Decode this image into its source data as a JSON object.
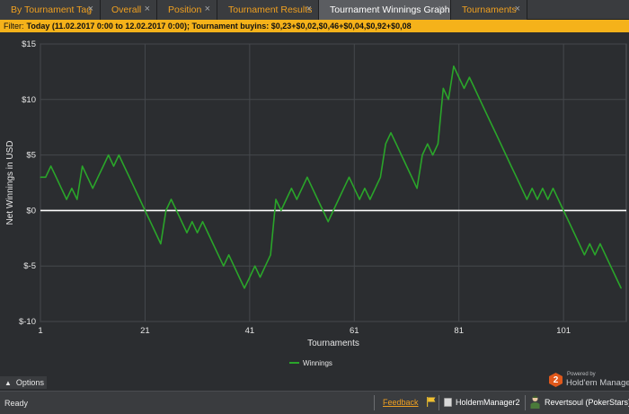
{
  "tabs": [
    {
      "label": "By Tournament Tag",
      "active": false
    },
    {
      "label": "Overall",
      "active": false
    },
    {
      "label": "Position",
      "active": false
    },
    {
      "label": "Tournament Results",
      "active": false
    },
    {
      "label": "Tournament Winnings Graph",
      "active": true
    },
    {
      "label": "Tournaments",
      "active": false
    }
  ],
  "tab_close_glyph": "×",
  "filter": {
    "label": "Filter:",
    "value": "Today (11.02.2017 0:00 to 12.02.2017 0:00); Tournament buyins: $0,23+$0,02,$0,46+$0,04,$0,92+$0,08"
  },
  "options": {
    "label": "Options",
    "icon": "chevron-up-icon"
  },
  "watermark": {
    "powered": "Powered by",
    "brand": "Hold'em Manager",
    "badge": "2"
  },
  "status": {
    "text": "Ready",
    "feedback": "Feedback",
    "database": "HoldemManager2",
    "user": "Revertsoul (PokerStars)"
  },
  "colors": {
    "accent": "#f0a020",
    "filter_bg": "#f5b21a",
    "series": "#2aa52a",
    "zero_line": "#ffffff",
    "background": "#2b2d30"
  },
  "chart_data": {
    "type": "line",
    "title": "",
    "xlabel": "Tournaments",
    "ylabel": "Net Winnings in USD",
    "xlim": [
      1,
      113
    ],
    "ylim": [
      -10,
      15
    ],
    "x_ticks": [
      1,
      21,
      41,
      61,
      81,
      101
    ],
    "y_ticks": [
      {
        "value": 15,
        "label": "$15"
      },
      {
        "value": 10,
        "label": "$10"
      },
      {
        "value": 5,
        "label": "$5"
      },
      {
        "value": 0,
        "label": "$0"
      },
      {
        "value": -5,
        "label": "$-5"
      },
      {
        "value": -10,
        "label": "$-10"
      }
    ],
    "grid": true,
    "legend_position": "bottom-center",
    "series": [
      {
        "name": "Winnings",
        "color": "#2aa52a",
        "points": [
          [
            1,
            3
          ],
          [
            2,
            3
          ],
          [
            3,
            4
          ],
          [
            4,
            3
          ],
          [
            5,
            2
          ],
          [
            6,
            1
          ],
          [
            7,
            2
          ],
          [
            8,
            1
          ],
          [
            9,
            4
          ],
          [
            10,
            3
          ],
          [
            11,
            2
          ],
          [
            12,
            3
          ],
          [
            13,
            4
          ],
          [
            14,
            5
          ],
          [
            15,
            4
          ],
          [
            16,
            5
          ],
          [
            17,
            4
          ],
          [
            18,
            3
          ],
          [
            19,
            2
          ],
          [
            20,
            1
          ],
          [
            21,
            0
          ],
          [
            22,
            -1
          ],
          [
            23,
            -2
          ],
          [
            24,
            -3
          ],
          [
            25,
            0
          ],
          [
            26,
            1
          ],
          [
            27,
            0
          ],
          [
            28,
            -1
          ],
          [
            29,
            -2
          ],
          [
            30,
            -1
          ],
          [
            31,
            -2
          ],
          [
            32,
            -1
          ],
          [
            33,
            -2
          ],
          [
            34,
            -3
          ],
          [
            35,
            -4
          ],
          [
            36,
            -5
          ],
          [
            37,
            -4
          ],
          [
            38,
            -5
          ],
          [
            39,
            -6
          ],
          [
            40,
            -7
          ],
          [
            41,
            -6
          ],
          [
            42,
            -5
          ],
          [
            43,
            -6
          ],
          [
            44,
            -5
          ],
          [
            45,
            -4
          ],
          [
            46,
            1
          ],
          [
            47,
            0
          ],
          [
            48,
            1
          ],
          [
            49,
            2
          ],
          [
            50,
            1
          ],
          [
            51,
            2
          ],
          [
            52,
            3
          ],
          [
            53,
            2
          ],
          [
            54,
            1
          ],
          [
            55,
            0
          ],
          [
            56,
            -1
          ],
          [
            57,
            0
          ],
          [
            58,
            1
          ],
          [
            59,
            2
          ],
          [
            60,
            3
          ],
          [
            61,
            2
          ],
          [
            62,
            1
          ],
          [
            63,
            2
          ],
          [
            64,
            1
          ],
          [
            65,
            2
          ],
          [
            66,
            3
          ],
          [
            67,
            6
          ],
          [
            68,
            7
          ],
          [
            69,
            6
          ],
          [
            70,
            5
          ],
          [
            71,
            4
          ],
          [
            72,
            3
          ],
          [
            73,
            2
          ],
          [
            74,
            5
          ],
          [
            75,
            6
          ],
          [
            76,
            5
          ],
          [
            77,
            6
          ],
          [
            78,
            11
          ],
          [
            79,
            10
          ],
          [
            80,
            13
          ],
          [
            81,
            12
          ],
          [
            82,
            11
          ],
          [
            83,
            12
          ],
          [
            84,
            11
          ],
          [
            85,
            10
          ],
          [
            86,
            9
          ],
          [
            87,
            8
          ],
          [
            88,
            7
          ],
          [
            89,
            6
          ],
          [
            90,
            5
          ],
          [
            91,
            4
          ],
          [
            92,
            3
          ],
          [
            93,
            2
          ],
          [
            94,
            1
          ],
          [
            95,
            2
          ],
          [
            96,
            1
          ],
          [
            97,
            2
          ],
          [
            98,
            1
          ],
          [
            99,
            2
          ],
          [
            100,
            1
          ],
          [
            101,
            0
          ],
          [
            102,
            -1
          ],
          [
            103,
            -2
          ],
          [
            104,
            -3
          ],
          [
            105,
            -4
          ],
          [
            106,
            -3
          ],
          [
            107,
            -4
          ],
          [
            108,
            -3
          ],
          [
            109,
            -4
          ],
          [
            110,
            -5
          ],
          [
            111,
            -6
          ],
          [
            112,
            -7
          ]
        ]
      }
    ]
  }
}
